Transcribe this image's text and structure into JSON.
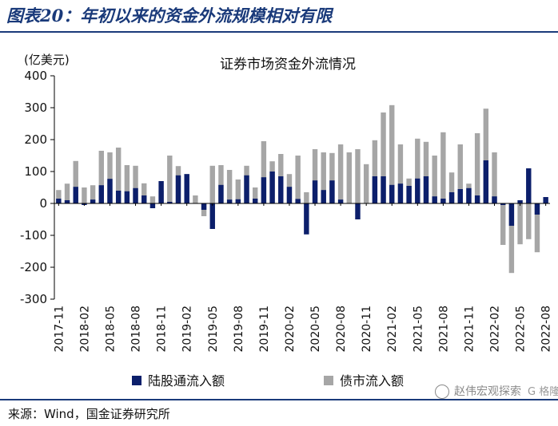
{
  "figure": {
    "title": "图表20：年初以来的资金外流规模相对有限",
    "source": "来源：Wind，国金证券研究所",
    "watermark": "赵伟宏观探索",
    "watermark_logo": "G 格隆汇"
  },
  "colors": {
    "northbound": "#0c1f6b",
    "bond": "#a6a6a6",
    "title": "#1a3a7a"
  },
  "chart_data": {
    "type": "bar",
    "title": "证券市场资金外流情况",
    "ylabel": "(亿美元)",
    "ylim": [
      -300,
      400
    ],
    "yticks": [
      -300,
      -200,
      -100,
      0,
      100,
      200,
      300,
      400
    ],
    "grid": false,
    "legend_position": "bottom",
    "categories": [
      "2017-11",
      "2017-12",
      "2018-01",
      "2018-02",
      "2018-03",
      "2018-04",
      "2018-05",
      "2018-06",
      "2018-07",
      "2018-08",
      "2018-09",
      "2018-10",
      "2018-11",
      "2018-12",
      "2019-01",
      "2019-02",
      "2019-03",
      "2019-04",
      "2019-05",
      "2019-06",
      "2019-07",
      "2019-08",
      "2019-09",
      "2019-10",
      "2019-11",
      "2019-12",
      "2020-01",
      "2020-02",
      "2020-03",
      "2020-04",
      "2020-05",
      "2020-06",
      "2020-07",
      "2020-08",
      "2020-09",
      "2020-10",
      "2020-11",
      "2020-12",
      "2021-01",
      "2021-02",
      "2021-03",
      "2021-04",
      "2021-05",
      "2021-06",
      "2021-07",
      "2021-08",
      "2021-09",
      "2021-10",
      "2021-11",
      "2021-12",
      "2022-01",
      "2022-02",
      "2022-03",
      "2022-04",
      "2022-05",
      "2022-06",
      "2022-07",
      "2022-08"
    ],
    "xtick_labels": [
      "2017-11",
      "2018-02",
      "2018-05",
      "2018-08",
      "2018-11",
      "2019-02",
      "2019-05",
      "2019-08",
      "2019-11",
      "2020-02",
      "2020-05",
      "2020-08",
      "2020-11",
      "2021-02",
      "2021-05",
      "2021-08",
      "2021-11",
      "2022-02",
      "2022-05",
      "2022-08"
    ],
    "series": [
      {
        "name": "陆股通流入额",
        "color": "#0c1f6b",
        "values": [
          15,
          10,
          52,
          -5,
          12,
          57,
          77,
          40,
          38,
          48,
          25,
          -15,
          70,
          5,
          88,
          92,
          0,
          -20,
          -80,
          58,
          12,
          13,
          88,
          15,
          82,
          100,
          85,
          52,
          14,
          -97,
          72,
          42,
          72,
          12,
          0,
          -50,
          0,
          85,
          85,
          58,
          62,
          55,
          78,
          85,
          22,
          15,
          35,
          45,
          48,
          25,
          135,
          22,
          -5,
          -70,
          10,
          110,
          -35,
          20
        ]
      },
      {
        "name": "债市流入额",
        "color": "#a6a6a6",
        "values": [
          42,
          62,
          133,
          50,
          57,
          165,
          160,
          175,
          120,
          118,
          63,
          22,
          40,
          150,
          117,
          92,
          25,
          -40,
          118,
          120,
          105,
          75,
          118,
          50,
          195,
          132,
          155,
          92,
          150,
          35,
          170,
          160,
          158,
          185,
          160,
          170,
          123,
          198,
          285,
          308,
          185,
          78,
          203,
          193,
          150,
          223,
          97,
          185,
          62,
          220,
          297,
          160,
          -130,
          -218,
          -128,
          -112,
          -153,
          0
        ]
      }
    ]
  }
}
